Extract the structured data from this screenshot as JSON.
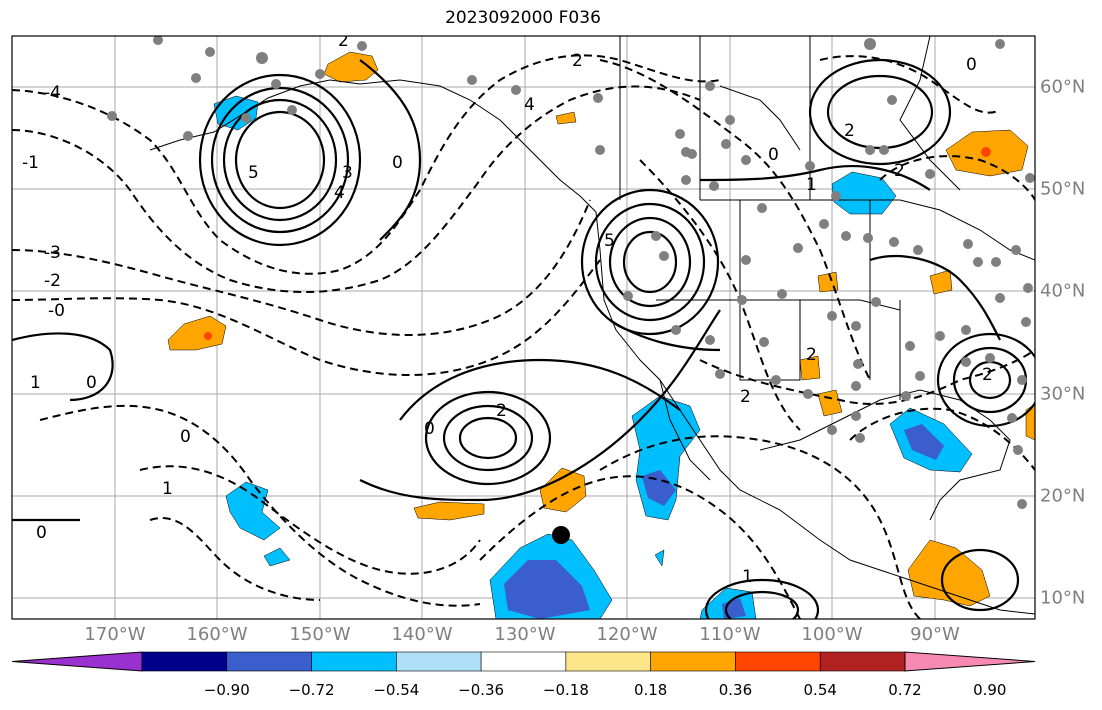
{
  "title": "2023092000 F036",
  "lon_labels": [
    "170°W",
    "160°W",
    "150°W",
    "140°W",
    "130°W",
    "120°W",
    "110°W",
    "100°W",
    "90°W"
  ],
  "lat_labels": [
    "60°N",
    "50°N",
    "40°N",
    "30°N",
    "20°N",
    "10°N"
  ],
  "colorbar": {
    "colors": [
      "#9b30d0",
      "#00008b",
      "#3a5fcd",
      "#00bfff",
      "#b0e0f8",
      "#ffffff",
      "#fde68a",
      "#ffa500",
      "#ff4500",
      "#b22222",
      "#f78ab0"
    ],
    "labels": [
      "−0.90",
      "−0.72",
      "−0.54",
      "−0.36",
      "−0.18",
      "0.18",
      "0.36",
      "0.54",
      "0.72",
      "0.90"
    ]
  },
  "contour_labels": [
    "2",
    "3",
    "4",
    "5",
    "0",
    "-4",
    "-3",
    "-2",
    "-0",
    "-1",
    "1",
    "4",
    "5",
    "2",
    "2",
    "0",
    "0",
    "0",
    "1",
    "0",
    "1",
    "2",
    "2",
    "2",
    "1",
    "0",
    "2",
    "2",
    "0"
  ]
}
